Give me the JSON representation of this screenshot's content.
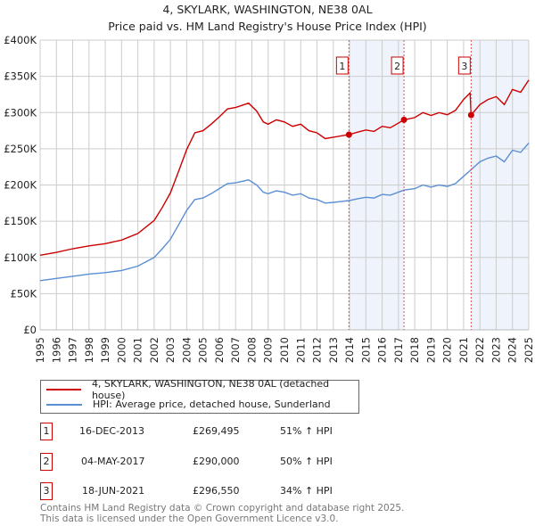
{
  "chart_data": {
    "type": "line",
    "title": "4, SKYLARK, WASHINGTON, NE38 0AL",
    "subtitle": "Price paid vs. HM Land Registry's House Price Index (HPI)",
    "xlim": [
      1995,
      2025
    ],
    "ylim": [
      0,
      400000
    ],
    "x_ticks": [
      "1995",
      "1996",
      "1997",
      "1998",
      "1999",
      "2000",
      "2001",
      "2002",
      "2003",
      "2004",
      "2005",
      "2006",
      "2007",
      "2008",
      "2009",
      "2010",
      "2011",
      "2012",
      "2013",
      "2014",
      "2015",
      "2016",
      "2017",
      "2018",
      "2019",
      "2020",
      "2021",
      "2022",
      "2023",
      "2024",
      "2025"
    ],
    "y_ticks": [
      {
        "value": 0,
        "label": "£0"
      },
      {
        "value": 50000,
        "label": "£50K"
      },
      {
        "value": 100000,
        "label": "£100K"
      },
      {
        "value": 150000,
        "label": "£150K"
      },
      {
        "value": 200000,
        "label": "£200K"
      },
      {
        "value": 250000,
        "label": "£250K"
      },
      {
        "value": 300000,
        "label": "£300K"
      },
      {
        "value": 350000,
        "label": "£350K"
      },
      {
        "value": 400000,
        "label": "£400K"
      }
    ],
    "grid": true,
    "series": [
      {
        "name": "4, SKYLARK, WASHINGTON, NE38 0AL (detached house)",
        "color": "#cc0000",
        "x": [
          1995,
          1996,
          1997,
          1998,
          1999,
          2000,
          2001,
          2002,
          2002.5,
          2003,
          2003.5,
          2004,
          2004.5,
          2005,
          2005.5,
          2006,
          2006.5,
          2007,
          2007.8,
          2008.3,
          2008.7,
          2009,
          2009.5,
          2010,
          2010.5,
          2011,
          2011.5,
          2012,
          2012.5,
          2013,
          2013.96,
          2014.5,
          2015,
          2015.5,
          2016,
          2016.5,
          2017.34,
          2018,
          2018.5,
          2019,
          2019.5,
          2020,
          2020.5,
          2021,
          2021.4,
          2021.46,
          2022,
          2022.5,
          2023,
          2023.5,
          2024,
          2024.5,
          2025
        ],
        "y": [
          103,
          107,
          112,
          116,
          119,
          124,
          133,
          151,
          169,
          189,
          219,
          249,
          272,
          275,
          284,
          294,
          305,
          307,
          313,
          302,
          287,
          284,
          290,
          287,
          281,
          284,
          275,
          272,
          264,
          266,
          269.5,
          273,
          276,
          274,
          281,
          279,
          290,
          293,
          300,
          296,
          300,
          297,
          303,
          318,
          327,
          296.5,
          311,
          318,
          322,
          311,
          332,
          328,
          345
        ]
      },
      {
        "name": "HPI: Average price, detached house, Sunderland",
        "color": "#5b8fd4",
        "x": [
          1995,
          1996,
          1997,
          1998,
          1999,
          2000,
          2001,
          2002,
          2002.5,
          2003,
          2003.5,
          2004,
          2004.5,
          2005,
          2005.5,
          2006,
          2006.5,
          2007,
          2007.8,
          2008.3,
          2008.7,
          2009,
          2009.5,
          2010,
          2010.5,
          2011,
          2011.5,
          2012,
          2012.5,
          2013,
          2013.96,
          2014.5,
          2015,
          2015.5,
          2016,
          2016.5,
          2017.34,
          2018,
          2018.5,
          2019,
          2019.5,
          2020,
          2020.5,
          2021,
          2021.46,
          2022,
          2022.5,
          2023,
          2023.5,
          2024,
          2024.5,
          2025
        ],
        "y": [
          68,
          71,
          74,
          77,
          79,
          82,
          88,
          100,
          112,
          125,
          145,
          165,
          180,
          182,
          188,
          195,
          202,
          203,
          207,
          200,
          190,
          188,
          192,
          190,
          186,
          188,
          182,
          180,
          175,
          176,
          178.5,
          181,
          183,
          182,
          187,
          186,
          193,
          195,
          200,
          197,
          200,
          198,
          202,
          212,
          221,
          232,
          237,
          240,
          232,
          248,
          245,
          258
        ]
      }
    ],
    "y_units_note": "series y in £ thousands",
    "sales": [
      {
        "id": "1",
        "x": 2013.96,
        "y": 269.495,
        "date": "16-DEC-2013",
        "price": "£269,495",
        "hpi": "51% ↑ HPI"
      },
      {
        "id": "2",
        "x": 2017.34,
        "y": 290,
        "date": "04-MAY-2017",
        "price": "£290,000",
        "hpi": "50% ↑ HPI"
      },
      {
        "id": "3",
        "x": 2021.46,
        "y": 296.55,
        "date": "18-JUN-2021",
        "price": "£296,550",
        "hpi": "34% ↑ HPI"
      }
    ],
    "shaded_ranges": [
      [
        2013.96,
        2017.34
      ],
      [
        2021.46,
        2025
      ]
    ],
    "legend_placement": "below"
  },
  "legend": {
    "property": "4, SKYLARK, WASHINGTON, NE38 0AL (detached house)",
    "hpi": "HPI: Average price, detached house, Sunderland"
  },
  "footer": {
    "line1": "Contains HM Land Registry data © Crown copyright and database right 2025.",
    "line2": "This data is licensed under the Open Government Licence v3.0."
  },
  "colors": {
    "property": "#cc0000",
    "hpi": "#5b8fd4",
    "shade": "#eef3fc",
    "grid": "#cccccc"
  }
}
